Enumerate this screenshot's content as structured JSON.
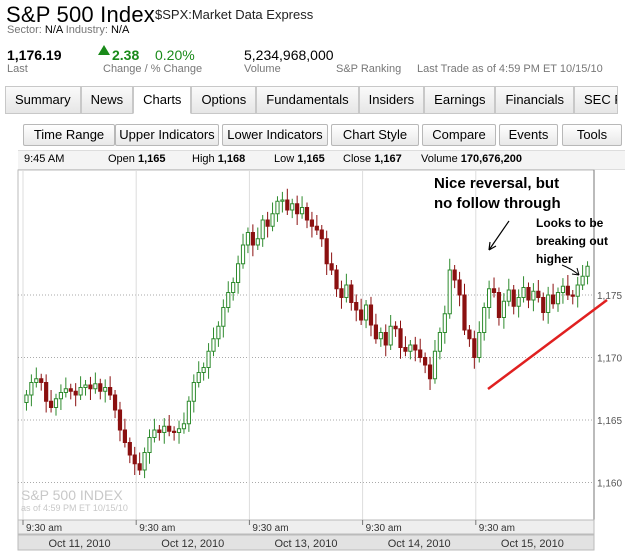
{
  "header": {
    "title": "S&P 500 Index",
    "symbol": "$SPX:Market Data Express",
    "sector_label": "Sector:",
    "sector_value": "N/A",
    "industry_label": "Industry:",
    "industry_value": "N/A"
  },
  "quote": {
    "last": "1,176.19",
    "last_label": "Last",
    "change": "2.38",
    "pct_change": "0.20%",
    "change_label": "Change / % Change",
    "volume": "5,234,968,000",
    "volume_label": "Volume",
    "ranking_label": "S&P Ranking",
    "last_trade": "Last Trade as of 4:59 PM ET 10/15/10"
  },
  "tabs": [
    "Summary",
    "News",
    "Charts",
    "Options",
    "Fundamentals",
    "Insiders",
    "Earnings",
    "Financials",
    "SEC Fi"
  ],
  "active_tab": "Charts",
  "toolbar": [
    "Time Range",
    "Upper Indicators",
    "Lower Indicators",
    "Chart Style",
    "Compare",
    "Events",
    "Tools"
  ],
  "info_bar": {
    "time": "9:45 AM",
    "open_label": "Open",
    "open": "1,165",
    "high_label": "High",
    "high": "1,168",
    "low_label": "Low",
    "low": "1,165",
    "close_label": "Close",
    "close": "1,167",
    "volume_label": "Volume",
    "volume": "170,676,200"
  },
  "colors": {
    "up": "#2e8b2e",
    "down": "#8b1010",
    "trendline": "#e02020",
    "grid": "#aaaaaa"
  },
  "chart_data": {
    "type": "candlestick",
    "ylim": [
      1157,
      1185
    ],
    "y_ticks": [
      1160,
      1165,
      1170,
      1175
    ],
    "y_tick_labels": [
      "1,160",
      "1,165",
      "1,170",
      "1,175"
    ],
    "days": [
      "Oct 11, 2010",
      "Oct 12, 2010",
      "Oct 13, 2010",
      "Oct 14, 2010",
      "Oct 15, 2010"
    ],
    "session_open_labels": [
      "9:30 am",
      "9:30 am",
      "9:30 am",
      "9:30 am",
      "9:30 am"
    ],
    "watermark": "S&P 500 INDEX",
    "watermark_sub": "as of 4:59 PM ET 10/15/10",
    "closes": [
      1167,
      1168,
      1168.3,
      1168,
      1166.5,
      1166,
      1166.7,
      1167.2,
      1167.5,
      1167.3,
      1167,
      1167.6,
      1167.8,
      1167.5,
      1167.9,
      1167.3,
      1167.6,
      1167,
      1165.8,
      1164.2,
      1163.2,
      1162.2,
      1161.5,
      1161,
      1162.4,
      1163.6,
      1164.2,
      1164,
      1164.5,
      1164.1,
      1164,
      1164.3,
      1164.7,
      1166.5,
      1168,
      1168.8,
      1169.2,
      1170.5,
      1171.5,
      1172.5,
      1174,
      1175.2,
      1176,
      1177.5,
      1179,
      1180,
      1179,
      1179.5,
      1181,
      1180.5,
      1181.5,
      1182.5,
      1182.6,
      1181.8,
      1182.3,
      1181.5,
      1182,
      1181,
      1180.5,
      1180.2,
      1179.5,
      1177.5,
      1177,
      1175.5,
      1174.8,
      1175.8,
      1174.4,
      1173.8,
      1173,
      1174.2,
      1172.6,
      1171.5,
      1172,
      1171,
      1172.5,
      1172.3,
      1170.8,
      1170.5,
      1171,
      1170.6,
      1170,
      1169.4,
      1168.3,
      1170.5,
      1172,
      1173.5,
      1177,
      1176.2,
      1175,
      1172.2,
      1171.5,
      1170,
      1172,
      1174,
      1175.5,
      1175.2,
      1173.2,
      1174.5,
      1175.4,
      1174.1,
      1174.8,
      1175.6,
      1174.6,
      1175.3,
      1174.8,
      1173.6,
      1175,
      1174.3,
      1175.2,
      1175.7,
      1175,
      1174.9,
      1175.8,
      1176.5,
      1177.3
    ]
  },
  "annotations": {
    "reversal": [
      "Nice reversal, but",
      "no follow through"
    ],
    "breakout": [
      "Looks to be",
      "breaking out",
      "higher"
    ]
  }
}
